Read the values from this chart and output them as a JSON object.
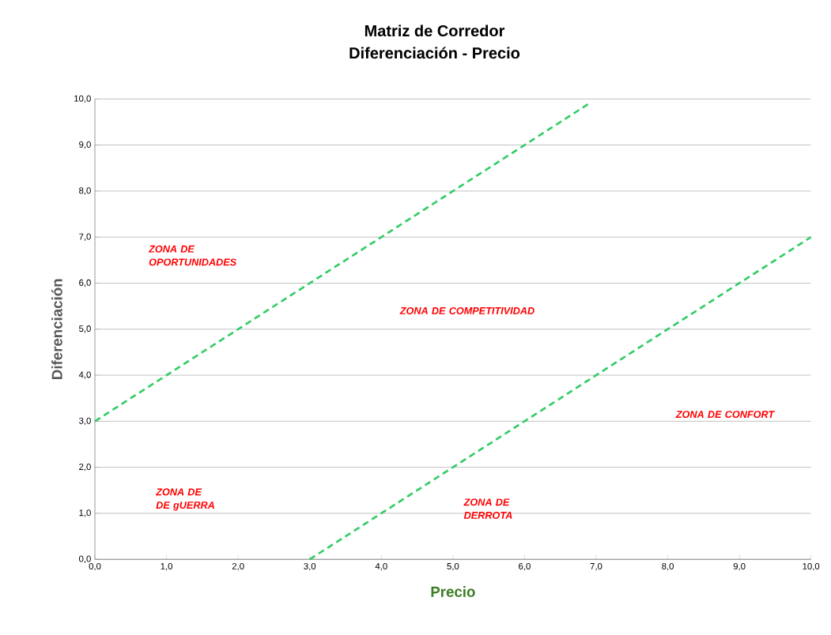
{
  "chart_data": {
    "type": "line",
    "title": "Matriz de Corredor",
    "subtitle": "Diferenciación - Precio",
    "xlabel": "Precio",
    "ylabel": "Diferenciación",
    "xlim": [
      0,
      10
    ],
    "ylim": [
      0,
      10
    ],
    "xticks": [
      {
        "value": 0,
        "label": "0,0"
      },
      {
        "value": 1,
        "label": "1,0"
      },
      {
        "value": 2,
        "label": "2,0"
      },
      {
        "value": 3,
        "label": "3,0"
      },
      {
        "value": 4,
        "label": "4,0"
      },
      {
        "value": 5,
        "label": "5,0"
      },
      {
        "value": 6,
        "label": "6,0"
      },
      {
        "value": 7,
        "label": "7,0"
      },
      {
        "value": 8,
        "label": "8,0"
      },
      {
        "value": 9,
        "label": "9,0"
      },
      {
        "value": 10,
        "label": "10,0"
      }
    ],
    "yticks": [
      {
        "value": 0,
        "label": "0,0"
      },
      {
        "value": 1,
        "label": "1,0"
      },
      {
        "value": 2,
        "label": "2,0"
      },
      {
        "value": 3,
        "label": "3,0"
      },
      {
        "value": 4,
        "label": "4,0"
      },
      {
        "value": 5,
        "label": "5,0"
      },
      {
        "value": 6,
        "label": "6,0"
      },
      {
        "value": 7,
        "label": "7,0"
      },
      {
        "value": 8,
        "label": "8,0"
      },
      {
        "value": 9,
        "label": "9,0"
      },
      {
        "value": 10,
        "label": "10,0"
      }
    ],
    "grid": "y",
    "line_style": "dashed",
    "marker": "none",
    "series": [
      {
        "color": "#33cc66",
        "x": [
          0,
          6.9
        ],
        "values": [
          3,
          9.9
        ]
      },
      {
        "color": "#33cc66",
        "x": [
          3,
          10
        ],
        "values": [
          0,
          7
        ]
      }
    ],
    "annotations": [
      "ZONA DE OPORTUNIDADES",
      "ZONA DE COMPETITIVIDAD",
      "ZONA DE CONFORT",
      "ZONA DE DE gUERRA",
      "ZONA DE DERROTA"
    ]
  }
}
